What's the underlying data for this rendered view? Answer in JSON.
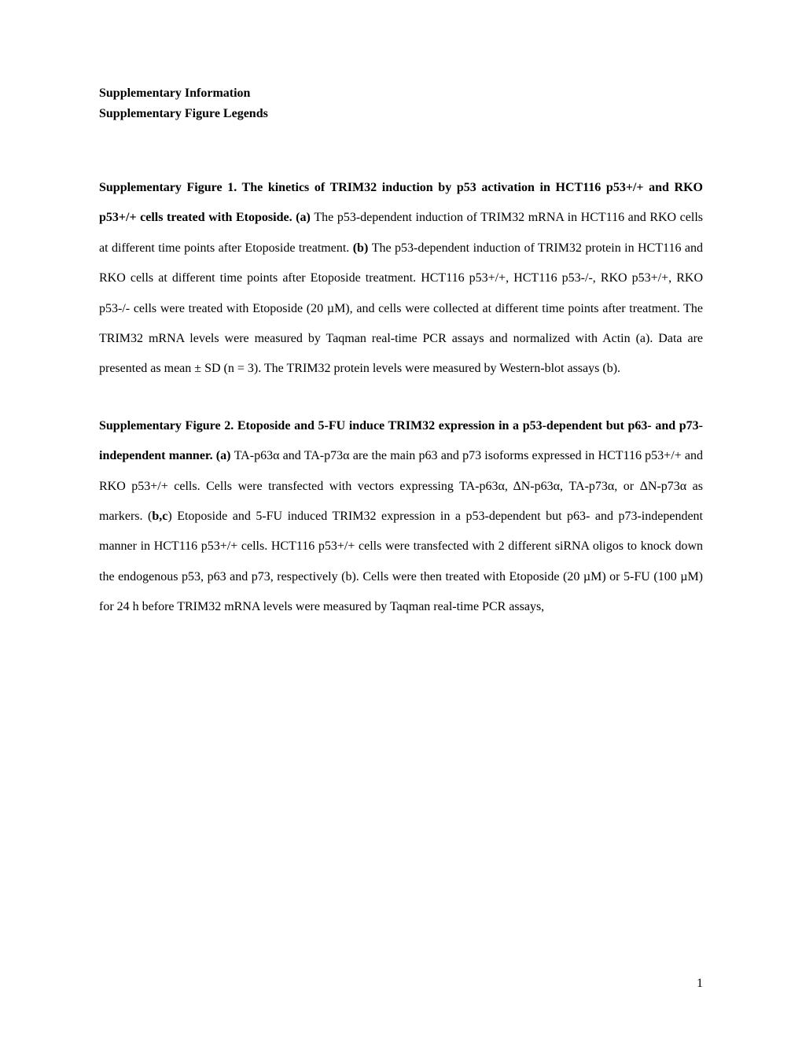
{
  "heading": "Supplementary Information",
  "subheading": "Supplementary Figure Legends",
  "figure1": {
    "title_part1": "Supplementary Figure 1. The kinetics of TRIM32 induction by p53 activation in HCT116 p53+/+ and RKO p53+/+ cells treated with Etoposide.   (a) ",
    "body_part1": "The p53-dependent induction of TRIM32 mRNA in HCT116 and RKO cells at different time points after Etoposide treatment. ",
    "bold_b": "(b) ",
    "body_part2": "The p53-dependent induction of TRIM32 protein in HCT116 and RKO cells at different time points after Etoposide treatment. HCT116 p53+/+, HCT116 p53-/-, RKO p53+/+, RKO p53-/- cells were treated with Etoposide (20 µM), and cells were collected at different time points after treatment. The TRIM32 mRNA levels were measured by Taqman real-time PCR assays and normalized with Actin (a). Data are presented as mean ± SD (n = 3). The TRIM32 protein levels were measured by Western-blot assays (b)."
  },
  "figure2": {
    "title_part1": "Supplementary Figure 2. Etoposide and 5-FU induce TRIM32 expression in a p53-dependent but p63- and p73-independent manner. (a) ",
    "body_part1": "TA-p63α and TA-p73α are the main p63 and p73 isoforms expressed in HCT116 p53+/+ and RKO p53+/+ cells.  Cells were transfected with vectors expressing TA-p63α, ΔN-p63α, TA-p73α, or ΔN-p73α as markers.  (",
    "bold_bc": "b,c",
    "body_part2": ")  Etoposide and 5-FU induced TRIM32 expression in a p53-dependent but p63- and p73-independent manner in HCT116 p53+/+ cells. HCT116 p53+/+ cells were transfected with 2 different siRNA oligos to knock down the endogenous p53, p63 and p73, respectively (b). Cells were then treated with Etoposide (20 µM) or 5-FU (100 µM) for 24 h before TRIM32 mRNA levels were measured by Taqman real-time PCR assays,"
  },
  "pageNumber": "1"
}
